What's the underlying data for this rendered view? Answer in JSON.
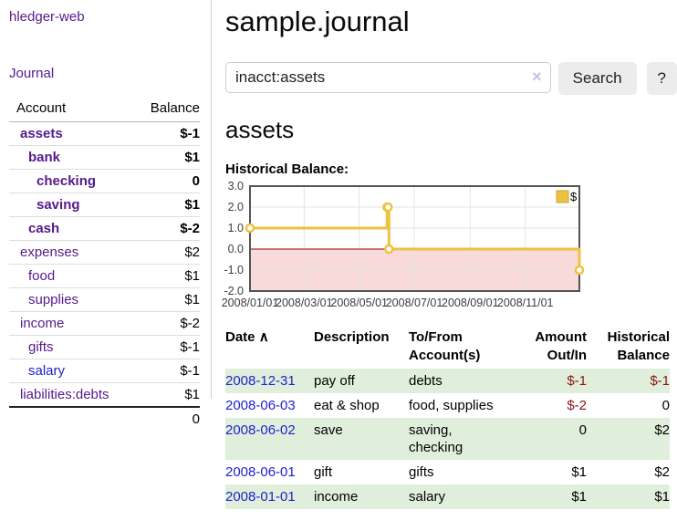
{
  "colors": {
    "purple_link": "#551A8B",
    "blue_link": "#2222CC",
    "negative": "#8B1616",
    "negative_muted": "#BB7C7C",
    "row_green": "#E0EFDB",
    "chart_gold": "#EDC240"
  },
  "sidebar": {
    "app_title": "hledger-web",
    "nav": {
      "journal": "Journal"
    },
    "accounts_table": {
      "headers": {
        "account": "Account",
        "balance": "Balance"
      },
      "rows": [
        {
          "name": "assets",
          "depth": 1,
          "bold": true,
          "balance": "$-1",
          "neg": true
        },
        {
          "name": "bank",
          "depth": 2,
          "bold": true,
          "balance": "$1"
        },
        {
          "name": "checking",
          "depth": 3,
          "bold": true,
          "balance": "0"
        },
        {
          "name": "saving",
          "depth": 3,
          "bold": true,
          "balance": "$1"
        },
        {
          "name": "cash",
          "depth": 2,
          "bold": true,
          "balance": "$-2",
          "neg": true
        },
        {
          "name": "expenses",
          "depth": 1,
          "balance": "$2"
        },
        {
          "name": "food",
          "depth": 2,
          "balance": "$1"
        },
        {
          "name": "supplies",
          "depth": 2,
          "balance": "$1"
        },
        {
          "name": "income",
          "depth": 1,
          "balance": "$-2",
          "muted": true
        },
        {
          "name": "gifts",
          "depth": 2,
          "balance": "$-1",
          "muted": true
        },
        {
          "name": "salary",
          "depth": 2,
          "blue": true,
          "balance": "$-1",
          "muted": true
        },
        {
          "name": "liabilities:debts",
          "depth": 1,
          "balance": "$1"
        }
      ],
      "total": "0"
    }
  },
  "main": {
    "title": "sample.journal",
    "search": {
      "query": "inacct:assets",
      "clear_icon": "×",
      "button_label": "Search",
      "help_label": "?"
    },
    "account_heading": "assets",
    "chart_label": "Historical Balance:"
  },
  "chart_data": {
    "type": "line",
    "step": true,
    "title": "Historical Balance",
    "series": [
      {
        "name": "$",
        "color": "#EDC240",
        "points": [
          [
            "2008-01-01",
            1
          ],
          [
            "2008-06-01",
            2
          ],
          [
            "2008-06-02",
            2
          ],
          [
            "2008-06-03",
            0
          ],
          [
            "2008-12-31",
            -1
          ]
        ]
      }
    ],
    "x_ticks": [
      "2008/01/01",
      "2008/03/01",
      "2008/05/01",
      "2008/07/01",
      "2008/09/01",
      "2008/11/01"
    ],
    "y_ticks": [
      3.0,
      2.0,
      1.0,
      0.0,
      -1.0,
      -2.0
    ],
    "ylim": [
      -2,
      3
    ],
    "x_range_days": 365,
    "grid": true,
    "grid_color": "#E3E3E3",
    "negative_region_color": "#F9DADA",
    "zero_line_color": "#8B0000",
    "border_color": "#545454",
    "axis_label_color": "#3d3d3d",
    "legend": {
      "label": "$",
      "position": "top-right",
      "border_color": "#C9A42F"
    }
  },
  "register": {
    "headers": {
      "date": "Date",
      "description": "Description",
      "accounts": "To/From Account(s)",
      "amount": "Amount Out/In",
      "balance": "Historical Balance"
    },
    "sort_icon": "∧",
    "rows": [
      {
        "date": "2008-12-31",
        "description": "pay off",
        "accounts": "debts",
        "amount": "$-1",
        "amount_negative": true,
        "balance": "$-1",
        "balance_negative": true,
        "shaded": true
      },
      {
        "date": "2008-06-03",
        "description": "eat & shop",
        "accounts": "food, supplies",
        "amount": "$-2",
        "amount_negative": true,
        "balance": "0",
        "balance_negative": false,
        "shaded": false
      },
      {
        "date": "2008-06-02",
        "description": "save",
        "accounts": "saving, checking",
        "amount": "0",
        "amount_negative": false,
        "balance": "$2",
        "balance_negative": false,
        "shaded": true
      },
      {
        "date": "2008-06-01",
        "description": "gift",
        "accounts": "gifts",
        "amount": "$1",
        "amount_negative": false,
        "balance": "$2",
        "balance_negative": false,
        "shaded": false
      },
      {
        "date": "2008-01-01",
        "description": "income",
        "accounts": "salary",
        "amount": "$1",
        "amount_negative": false,
        "balance": "$1",
        "balance_negative": false,
        "shaded": true
      }
    ]
  }
}
